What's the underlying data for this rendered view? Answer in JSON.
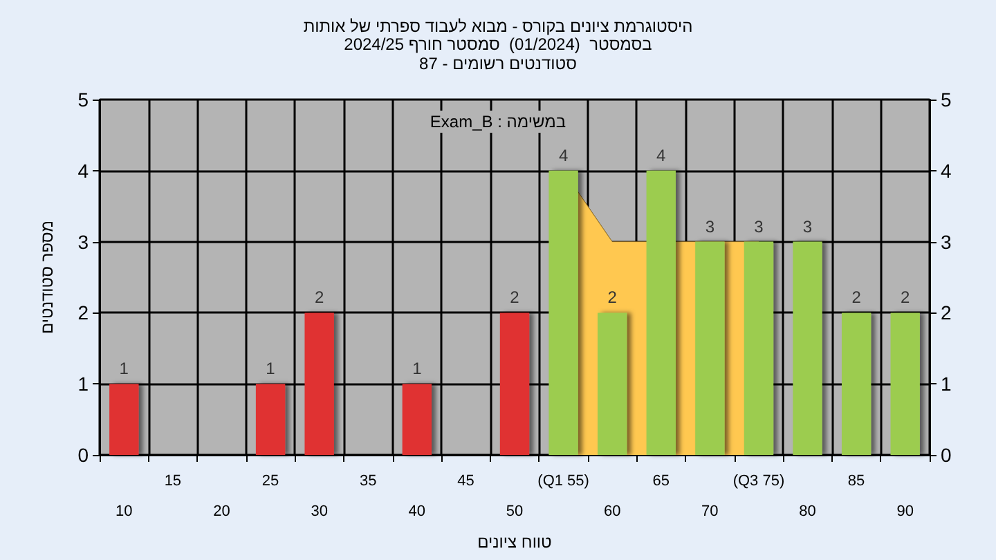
{
  "chart_data": {
    "type": "bar",
    "title": "היסטוגרמת ציונים בקורס - מבוא לעבוד ספרתי של אותות",
    "subtitle": "בסמסטר  (01/2024)  סמסטר חורף 2024/25\nסטודנטים רשומים - 87",
    "xlabel": "טווח ציונים",
    "ylabel": "מספר סטודנטים",
    "annotations": [
      "Exam_B : במשימה"
    ],
    "categories": [
      "10",
      "15",
      "20",
      "25",
      "30",
      "35",
      "40",
      "45",
      "50",
      "(Q1 55)",
      "60",
      "65",
      "70",
      "(Q3 75)",
      "80",
      "85",
      "90"
    ],
    "series": [
      {
        "colors": [
          "#e03030",
          "#e03030",
          "#e03030",
          "#e03030",
          "#e03030",
          "#e03030",
          "#e03030",
          "#e03030",
          "#e03030",
          "#9ccc50",
          "#9ccc50",
          "#9ccc50",
          "#9ccc50",
          "#9ccc50",
          "#9ccc50",
          "#9ccc50",
          "#9ccc50"
        ],
        "values": [
          1,
          0,
          0,
          1,
          2,
          0,
          1,
          0,
          2,
          4,
          2,
          4,
          3,
          3,
          3,
          2,
          2
        ],
        "value_labels": [
          "1",
          null,
          null,
          "1",
          "2",
          null,
          "1",
          null,
          "2",
          "4",
          "2",
          "4",
          "3",
          "3",
          "3",
          "2",
          "2"
        ]
      },
      {
        "type": "area",
        "color": "#ffc850",
        "values": [
          null,
          null,
          null,
          null,
          null,
          null,
          null,
          null,
          null,
          4,
          3,
          3,
          3,
          3,
          null,
          null,
          null
        ]
      }
    ],
    "ylim": [
      0,
      5
    ],
    "yticks": [
      0,
      1,
      2,
      3,
      4,
      5
    ],
    "y2lim": [
      0,
      5
    ],
    "y2ticks": [
      0,
      1,
      2,
      3,
      4,
      5
    ],
    "grid": true
  }
}
